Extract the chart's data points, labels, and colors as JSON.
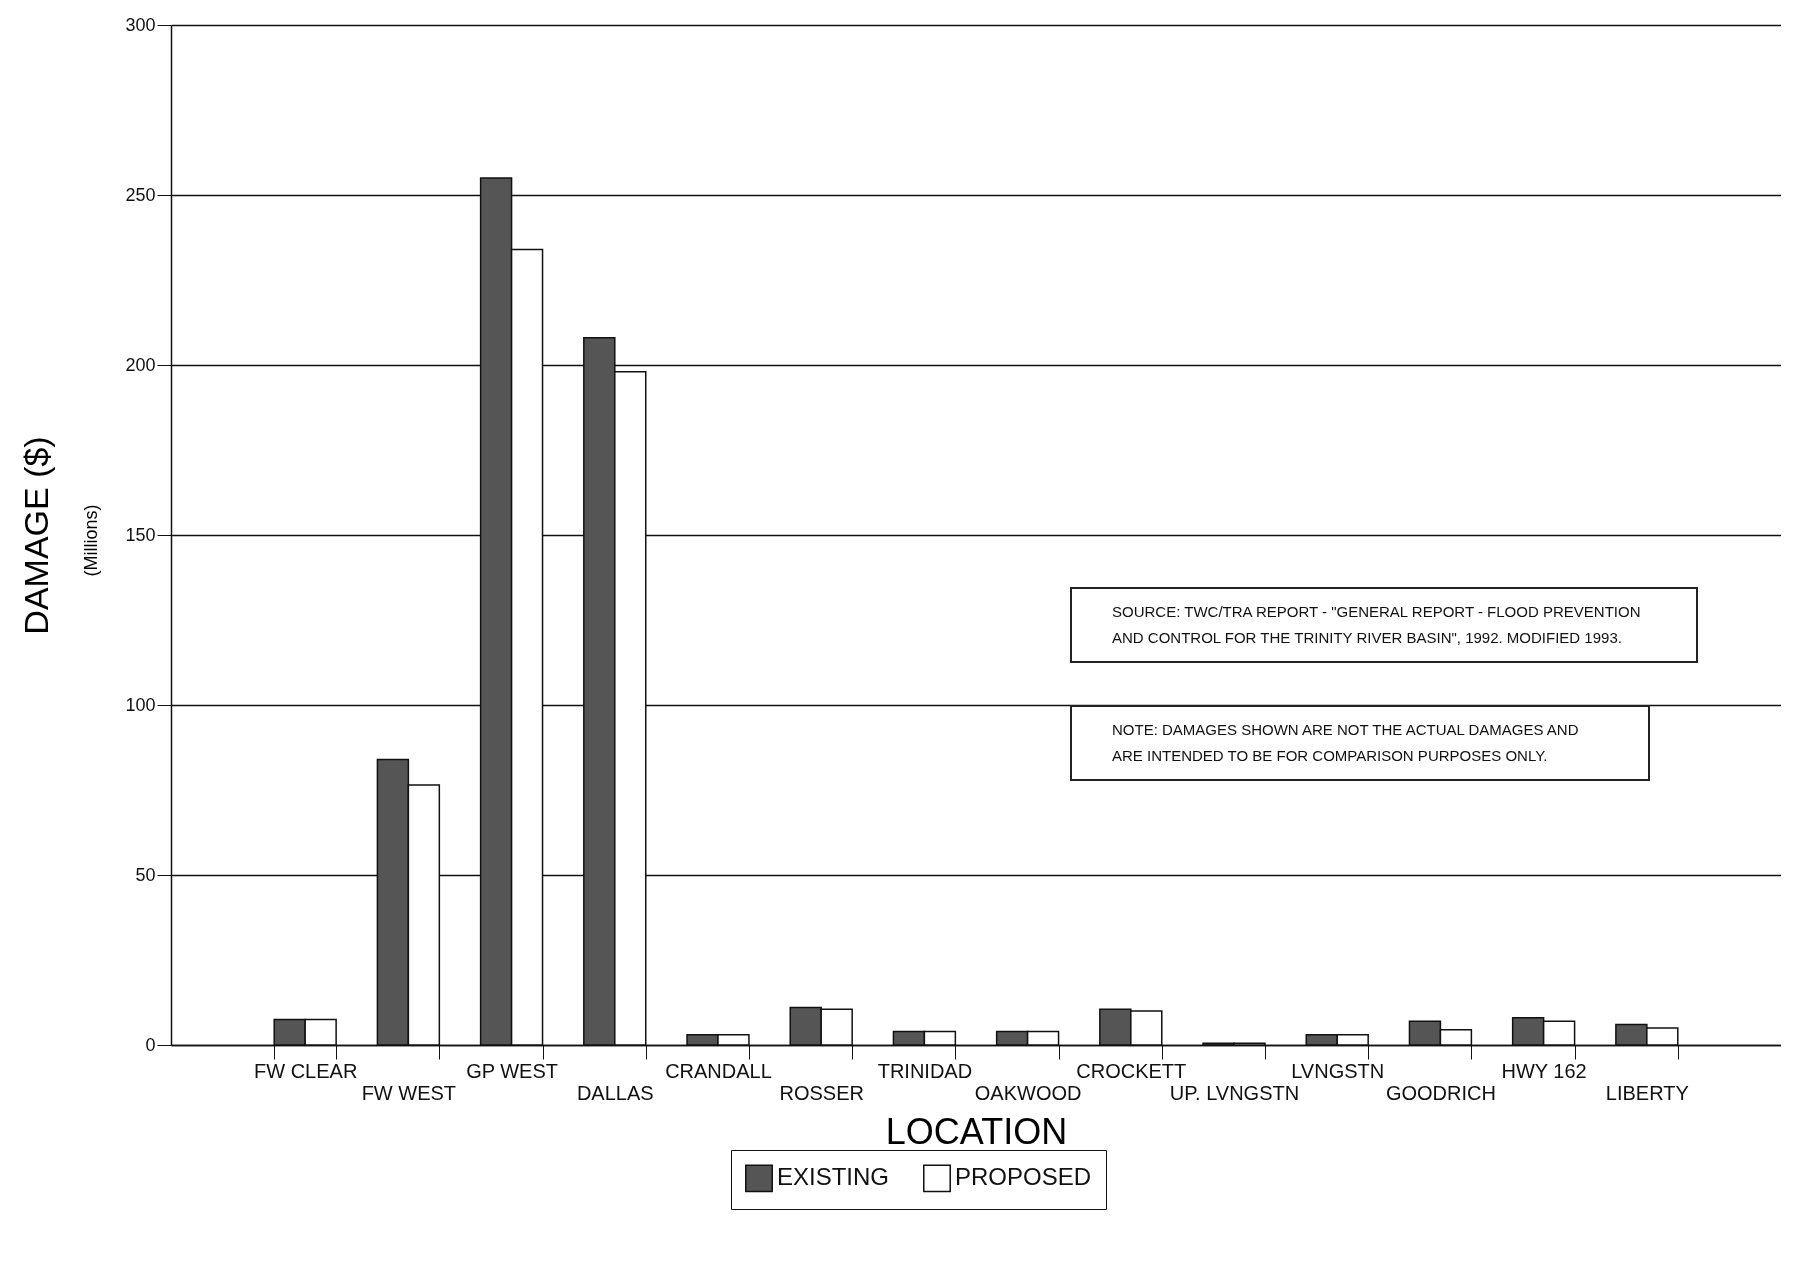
{
  "chart_data": {
    "type": "bar",
    "xlabel": "LOCATION",
    "ylabel": "DAMAGE ($)",
    "categories": [
      "FW CLEAR",
      "FW WEST",
      "GP WEST",
      "DALLAS",
      "CRANDALL",
      "ROSSER",
      "TRINIDAD",
      "OAKWOOD",
      "CROCKETT",
      "UP. LVNGSTN",
      "LVNGSTN",
      "GOODRICH",
      "HWY 162",
      "LIBERTY"
    ],
    "series": [
      {
        "name": "EXISTING",
        "color": "#555555",
        "values": [
          7.5,
          84,
          255,
          208,
          3,
          11,
          4,
          4,
          10.5,
          0.5,
          3,
          7,
          8,
          6
        ]
      },
      {
        "name": "PROPOSED",
        "color": "#ffffff",
        "values": [
          7.5,
          76.5,
          234,
          198,
          3,
          10.5,
          4,
          4,
          10,
          0.5,
          3,
          4.5,
          7,
          5
        ]
      }
    ],
    "ylim": [
      0,
      300
    ],
    "yticks": [
      0,
      50,
      100,
      150,
      200,
      250,
      300
    ],
    "grid": "y",
    "legend": "bottom",
    "annotations": [
      "(Millions)",
      "SOURCE:  TWC/TRA REPORT - \"GENERAL REPORT - FLOOD PREVENTION AND CONTROL FOR THE TRINITY RIVER BASIN\", 1992.  MODIFIED 1993.",
      "NOTE:  DAMAGES SHOWN ARE NOT THE ACTUAL DAMAGES AND ARE INTENDED TO BE FOR COMPARISON PURPOSES ONLY."
    ]
  }
}
